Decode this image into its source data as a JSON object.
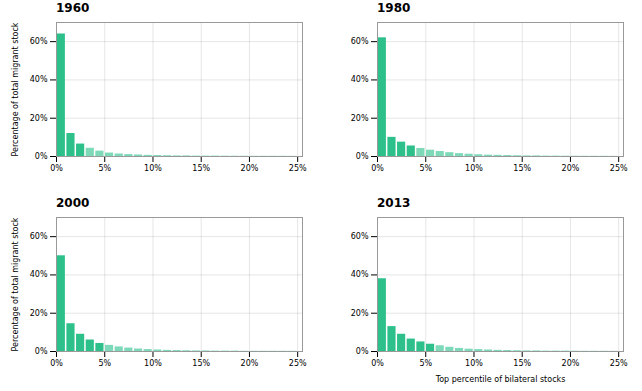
{
  "chart_data": [
    {
      "type": "histogram",
      "title": "1960",
      "bins": [
        0,
        0.01,
        0.02,
        0.03,
        0.04,
        0.05,
        0.06,
        0.07,
        0.08,
        0.09,
        0.1,
        0.11,
        0.12,
        0.13,
        0.14,
        0.15,
        0.16,
        0.17,
        0.18,
        0.19,
        0.2,
        0.21,
        0.22,
        0.23,
        0.24,
        0.25
      ],
      "values": [
        0.64,
        0.12,
        0.065,
        0.043,
        0.028,
        0.018,
        0.013,
        0.01,
        0.008,
        0.006,
        0.005,
        0.004,
        0.003,
        0.003,
        0.002,
        0.002,
        0.002,
        0.0015,
        0.0013,
        0.0012,
        0.001,
        0.001,
        0.001,
        0.001,
        0.0008
      ],
      "colors": [
        "#2dc08a",
        "#2dc08a",
        "#2dc08a",
        "#7dd9b8",
        "#7dd9b8",
        "#7dd9b8",
        "#7dd9b8",
        "#7dd9b8",
        "#7dd9b8",
        "#7dd9b8",
        "#7dd9b8",
        "#7dd9b8",
        "#7dd9b8",
        "#7dd9b8",
        "#7dd9b8",
        "#7dd9b8",
        "#7dd9b8",
        "#7dd9b8",
        "#7dd9b8",
        "#7dd9b8",
        "#7dd9b8",
        "#7dd9b8",
        "#7dd9b8",
        "#7dd9b8",
        "#7dd9b8"
      ],
      "xlim": [
        0,
        0.255
      ],
      "xticks": [
        {
          "value": 0,
          "label": "0%"
        },
        {
          "value": 0.05,
          "label": "5%"
        },
        {
          "value": 0.1,
          "label": "10%"
        },
        {
          "value": 0.15,
          "label": "15%"
        },
        {
          "value": 0.2,
          "label": "20%"
        },
        {
          "value": 0.25,
          "label": "25%"
        }
      ],
      "ylim": [
        0,
        0.7
      ],
      "yticks": [
        {
          "value": 0,
          "label": "0%"
        },
        {
          "value": 0.2,
          "label": "20%"
        },
        {
          "value": 0.4,
          "label": "40%"
        },
        {
          "value": 0.6,
          "label": "60%"
        }
      ],
      "ylabel": "Percentage of total migrant stock",
      "grid": true
    },
    {
      "type": "histogram",
      "title": "1980",
      "bins": [
        0,
        0.01,
        0.02,
        0.03,
        0.04,
        0.05,
        0.06,
        0.07,
        0.08,
        0.09,
        0.1,
        0.11,
        0.12,
        0.13,
        0.14,
        0.15,
        0.16,
        0.17,
        0.18,
        0.19,
        0.2,
        0.21,
        0.22,
        0.23,
        0.24,
        0.25
      ],
      "values": [
        0.62,
        0.1,
        0.075,
        0.055,
        0.042,
        0.033,
        0.026,
        0.02,
        0.015,
        0.012,
        0.009,
        0.007,
        0.006,
        0.005,
        0.004,
        0.003,
        0.003,
        0.002,
        0.002,
        0.0015,
        0.0013,
        0.0012,
        0.001,
        0.001,
        0.0008
      ],
      "colors": [
        "#2dc08a",
        "#2dc08a",
        "#2dc08a",
        "#2dc08a",
        "#7dd9b8",
        "#7dd9b8",
        "#7dd9b8",
        "#7dd9b8",
        "#7dd9b8",
        "#7dd9b8",
        "#7dd9b8",
        "#7dd9b8",
        "#7dd9b8",
        "#7dd9b8",
        "#7dd9b8",
        "#7dd9b8",
        "#7dd9b8",
        "#7dd9b8",
        "#7dd9b8",
        "#7dd9b8",
        "#7dd9b8",
        "#7dd9b8",
        "#7dd9b8",
        "#7dd9b8",
        "#7dd9b8"
      ],
      "xlim": [
        0,
        0.255
      ],
      "xticks": [
        {
          "value": 0,
          "label": "0%"
        },
        {
          "value": 0.05,
          "label": "5%"
        },
        {
          "value": 0.1,
          "label": "10%"
        },
        {
          "value": 0.15,
          "label": "15%"
        },
        {
          "value": 0.2,
          "label": "20%"
        },
        {
          "value": 0.25,
          "label": "25%"
        }
      ],
      "ylim": [
        0,
        0.7
      ],
      "yticks": [
        {
          "value": 0,
          "label": "0%"
        },
        {
          "value": 0.2,
          "label": "20%"
        },
        {
          "value": 0.4,
          "label": "40%"
        },
        {
          "value": 0.6,
          "label": "60%"
        }
      ],
      "grid": true
    },
    {
      "type": "histogram",
      "title": "2000",
      "bins": [
        0,
        0.01,
        0.02,
        0.03,
        0.04,
        0.05,
        0.06,
        0.07,
        0.08,
        0.09,
        0.1,
        0.11,
        0.12,
        0.13,
        0.14,
        0.15,
        0.16,
        0.17,
        0.18,
        0.19,
        0.2,
        0.21,
        0.22,
        0.23,
        0.24,
        0.25
      ],
      "values": [
        0.5,
        0.145,
        0.09,
        0.06,
        0.042,
        0.032,
        0.024,
        0.018,
        0.013,
        0.01,
        0.008,
        0.006,
        0.005,
        0.004,
        0.003,
        0.003,
        0.002,
        0.002,
        0.002,
        0.001,
        0.001,
        0.001,
        0.001,
        0.001,
        0.0008
      ],
      "colors": [
        "#2dc08a",
        "#2dc08a",
        "#2dc08a",
        "#2dc08a",
        "#2dc08a",
        "#7dd9b8",
        "#7dd9b8",
        "#7dd9b8",
        "#7dd9b8",
        "#7dd9b8",
        "#7dd9b8",
        "#7dd9b8",
        "#7dd9b8",
        "#7dd9b8",
        "#7dd9b8",
        "#7dd9b8",
        "#7dd9b8",
        "#7dd9b8",
        "#7dd9b8",
        "#7dd9b8",
        "#7dd9b8",
        "#7dd9b8",
        "#7dd9b8",
        "#7dd9b8",
        "#7dd9b8"
      ],
      "xlim": [
        0,
        0.255
      ],
      "xticks": [
        {
          "value": 0,
          "label": "0%"
        },
        {
          "value": 0.05,
          "label": "5%"
        },
        {
          "value": 0.1,
          "label": "10%"
        },
        {
          "value": 0.15,
          "label": "15%"
        },
        {
          "value": 0.2,
          "label": "20%"
        },
        {
          "value": 0.25,
          "label": "25%"
        }
      ],
      "ylim": [
        0,
        0.7
      ],
      "yticks": [
        {
          "value": 0,
          "label": "0%"
        },
        {
          "value": 0.2,
          "label": "20%"
        },
        {
          "value": 0.4,
          "label": "40%"
        },
        {
          "value": 0.6,
          "label": "60%"
        }
      ],
      "ylabel": "Percentage of total migrant stock",
      "grid": true
    },
    {
      "type": "histogram",
      "title": "2013",
      "bins": [
        0,
        0.01,
        0.02,
        0.03,
        0.04,
        0.05,
        0.06,
        0.07,
        0.08,
        0.09,
        0.1,
        0.11,
        0.12,
        0.13,
        0.14,
        0.15,
        0.16,
        0.17,
        0.18,
        0.19,
        0.2,
        0.21,
        0.22,
        0.23,
        0.24,
        0.25
      ],
      "values": [
        0.38,
        0.13,
        0.09,
        0.065,
        0.05,
        0.038,
        0.03,
        0.022,
        0.016,
        0.012,
        0.01,
        0.008,
        0.006,
        0.005,
        0.004,
        0.003,
        0.003,
        0.002,
        0.002,
        0.002,
        0.0015,
        0.001,
        0.001,
        0.001,
        0.0008
      ],
      "colors": [
        "#2dc08a",
        "#2dc08a",
        "#2dc08a",
        "#2dc08a",
        "#2dc08a",
        "#2dc08a",
        "#7dd9b8",
        "#7dd9b8",
        "#7dd9b8",
        "#7dd9b8",
        "#7dd9b8",
        "#7dd9b8",
        "#7dd9b8",
        "#7dd9b8",
        "#7dd9b8",
        "#7dd9b8",
        "#7dd9b8",
        "#7dd9b8",
        "#7dd9b8",
        "#7dd9b8",
        "#7dd9b8",
        "#7dd9b8",
        "#7dd9b8",
        "#7dd9b8",
        "#7dd9b8"
      ],
      "xlim": [
        0,
        0.255
      ],
      "xticks": [
        {
          "value": 0,
          "label": "0%"
        },
        {
          "value": 0.05,
          "label": "5%"
        },
        {
          "value": 0.1,
          "label": "10%"
        },
        {
          "value": 0.15,
          "label": "15%"
        },
        {
          "value": 0.2,
          "label": "20%"
        },
        {
          "value": 0.25,
          "label": "25%"
        }
      ],
      "ylim": [
        0,
        0.7
      ],
      "yticks": [
        {
          "value": 0,
          "label": "0%"
        },
        {
          "value": 0.2,
          "label": "20%"
        },
        {
          "value": 0.4,
          "label": "40%"
        },
        {
          "value": 0.6,
          "label": "60%"
        }
      ],
      "xlabel": "Top percentile of bilateral stocks",
      "grid": true
    }
  ]
}
